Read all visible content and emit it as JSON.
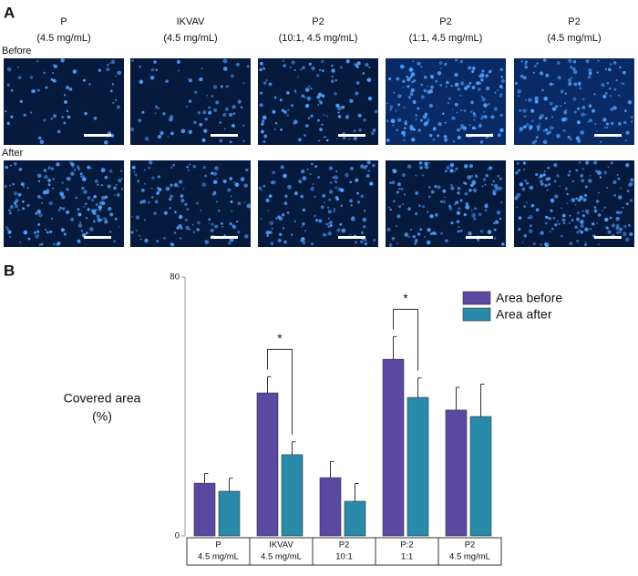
{
  "panel_a": {
    "label": "A",
    "columns": [
      {
        "name": "P",
        "detail": "(4.5 mg/mL)"
      },
      {
        "name": "IKVAV",
        "detail": "(4.5 mg/mL)"
      },
      {
        "name": "P2",
        "detail": "(10:1, 4.5 mg/mL)"
      },
      {
        "name": "P2",
        "detail": "(1:1, 4.5 mg/mL)"
      },
      {
        "name": "P2",
        "detail": "(4.5 mg/mL)"
      }
    ],
    "rows": [
      "Before",
      "After"
    ]
  },
  "chart_data": {
    "type": "bar",
    "panel_label": "B",
    "ylabel": [
      "Covered area",
      "(%)"
    ],
    "categories": [
      "P",
      "IKVAV",
      "P2",
      "P:2",
      "P2"
    ],
    "category_sublabels": [
      "4.5 mg/mL",
      "4.5 mg/mL",
      "10:1",
      "1:1",
      "4.5 mg/mL"
    ],
    "series": [
      {
        "name": "Area before",
        "color": "#5b48a0",
        "values": [
          16.3,
          44.2,
          18,
          54.6,
          38.9
        ],
        "errors": [
          3,
          5,
          5,
          7,
          7
        ]
      },
      {
        "name": "Area after",
        "color": "#2a8aaa",
        "values": [
          13.8,
          25.1,
          10.7,
          42.8,
          36.9
        ],
        "errors": [
          4,
          4,
          5.5,
          6,
          10
        ]
      }
    ],
    "annotations": [
      {
        "label": "*",
        "category": "IKVAV"
      },
      {
        "label": "*",
        "category": "P:2"
      }
    ],
    "ylim": [
      0,
      80
    ],
    "yticks": [
      0,
      80
    ],
    "legend": "upper right"
  }
}
